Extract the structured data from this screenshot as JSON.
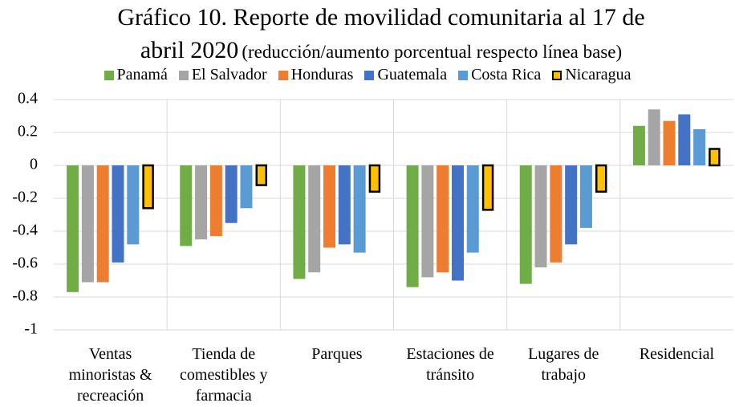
{
  "chart_data": {
    "type": "bar",
    "title": "Gráfico 10. Reporte de movilidad comunitaria al 17 de abril 2020",
    "subtitle": "(reducción/aumento porcentual respecto línea base)",
    "categories": [
      "Ventas minoristas & recreación",
      "Tienda de comestibles y farmacia",
      "Parques",
      "Estaciones de tránsito",
      "Lugares de trabajo",
      "Residencial"
    ],
    "series": [
      {
        "name": "Panamá",
        "color": "#70ad47",
        "values": [
          -0.77,
          -0.49,
          -0.69,
          -0.74,
          -0.72,
          0.24
        ]
      },
      {
        "name": "El Salvador",
        "color": "#a5a5a5",
        "values": [
          -0.71,
          -0.45,
          -0.65,
          -0.68,
          -0.62,
          0.34
        ]
      },
      {
        "name": "Honduras",
        "color": "#ed7d31",
        "values": [
          -0.71,
          -0.43,
          -0.5,
          -0.65,
          -0.59,
          0.27
        ]
      },
      {
        "name": "Guatemala",
        "color": "#4472c4",
        "values": [
          -0.59,
          -0.35,
          -0.48,
          -0.7,
          -0.48,
          0.31
        ]
      },
      {
        "name": "Costa Rica",
        "color": "#5b9bd5",
        "values": [
          -0.48,
          -0.26,
          -0.53,
          -0.53,
          -0.38,
          0.22
        ]
      },
      {
        "name": "Nicaragua",
        "color": "#ffc000",
        "stroke": "#000000",
        "values": [
          -0.26,
          -0.12,
          -0.16,
          -0.27,
          -0.16,
          0.1
        ]
      }
    ],
    "ylim": [
      -1,
      0.4
    ],
    "yticks": [
      -1,
      -0.8,
      -0.6,
      -0.4,
      -0.2,
      0,
      0.2,
      0.4
    ],
    "grid": true,
    "legend": "top"
  }
}
